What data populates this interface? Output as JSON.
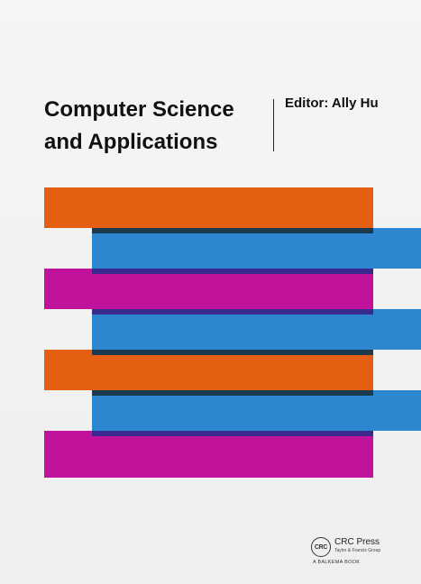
{
  "cover": {
    "title_line1": "Computer Science",
    "title_line2": "and Applications",
    "editor": "Editor: Ally Hu"
  },
  "publisher": {
    "logo_text": "CRC",
    "name": "CRC Press",
    "group": "Taylor & Francis Group",
    "imprint": "A BALKEMA BOOK"
  },
  "colors": {
    "orange": "#e45f12",
    "magenta": "#c0129a",
    "blue": "#2e86d1",
    "background": "#f2f2f2"
  }
}
